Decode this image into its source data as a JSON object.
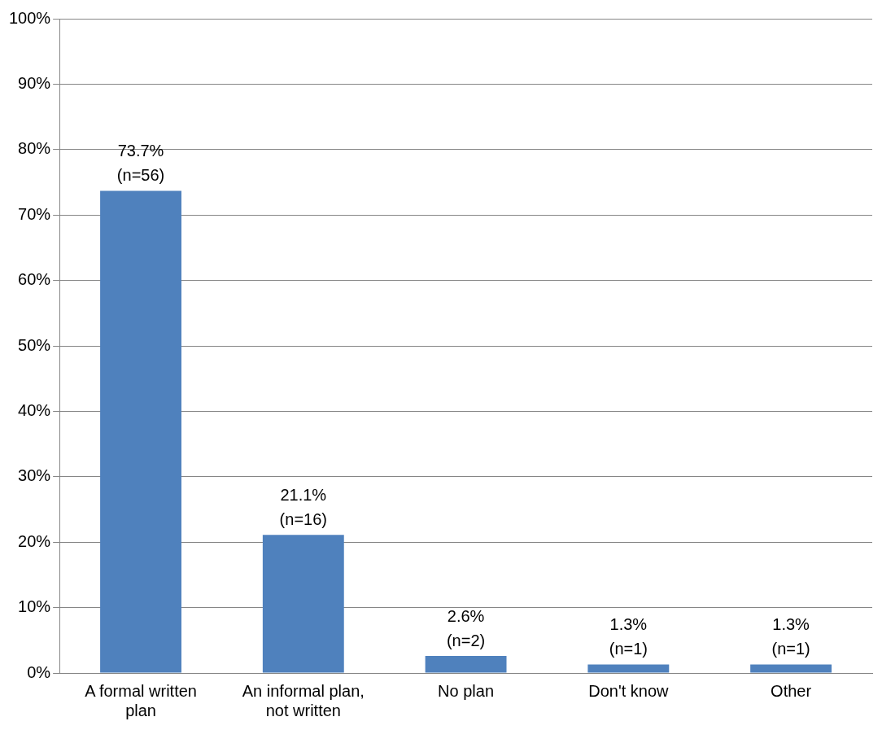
{
  "chart_data": {
    "type": "bar",
    "categories": [
      "A formal written plan",
      "An informal plan, not written",
      "No plan",
      "Don't know",
      "Other"
    ],
    "values": [
      73.7,
      21.1,
      2.6,
      1.3,
      1.3
    ],
    "color": "#4f81bd",
    "value_labels": [
      "73.7%\n(n=56)",
      "21.1%\n(n=16)",
      "2.6%\n(n=2)",
      "1.3%\n(n=1)",
      "1.3%\n(n=1)"
    ],
    "ylim": [
      0,
      100
    ],
    "yticks": [
      {
        "value": 0,
        "label": "0%"
      },
      {
        "value": 10,
        "label": "10%"
      },
      {
        "value": 20,
        "label": "20%"
      },
      {
        "value": 30,
        "label": "30%"
      },
      {
        "value": 40,
        "label": "40%"
      },
      {
        "value": 50,
        "label": "50%"
      },
      {
        "value": 60,
        "label": "60%"
      },
      {
        "value": 70,
        "label": "70%"
      },
      {
        "value": 80,
        "label": "80%"
      },
      {
        "value": 90,
        "label": "90%"
      },
      {
        "value": 100,
        "label": "100%"
      }
    ],
    "grid": "y",
    "legend": false
  }
}
